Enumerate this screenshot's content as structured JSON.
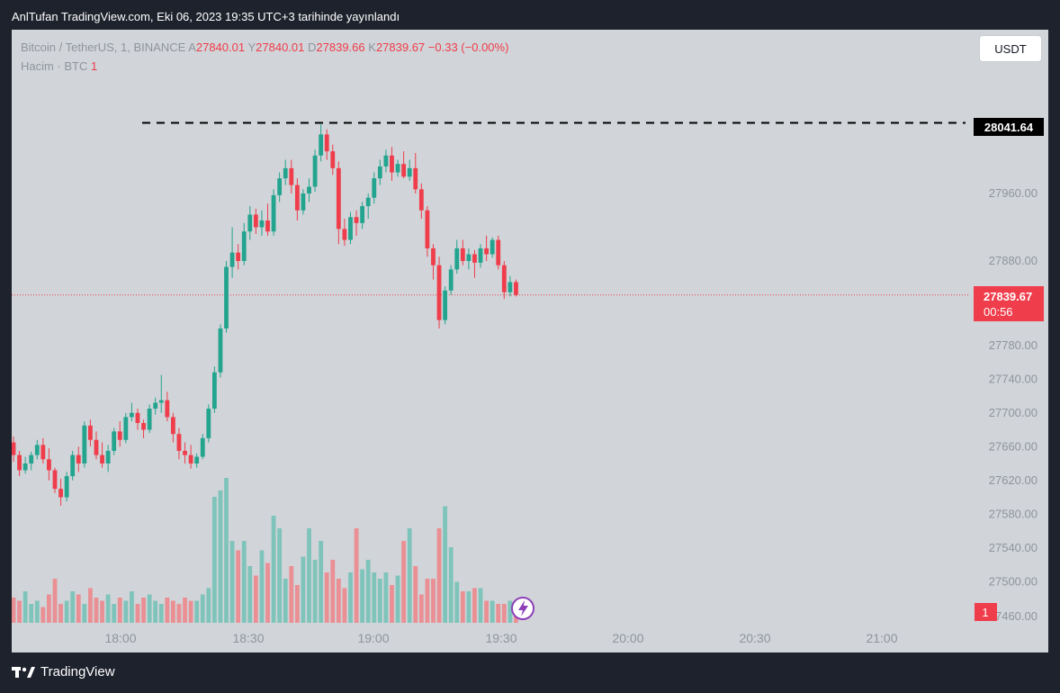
{
  "header": {
    "title": "AnlTufan TradingView.com, Eki 06, 2023 19:35 UTC+3 tarihinde yayınlandı"
  },
  "legend": {
    "symbol": "Bitcoin / TetherUS, 1, BINANCE",
    "o_label": "A",
    "o": "27840.01",
    "h_label": "Y",
    "h": "27840.01",
    "l_label": "D",
    "l": "27839.66",
    "c_label": "K",
    "c": "27839.67",
    "change": "−0.33 (−0.00%)",
    "volume_label": "Hacim · BTC",
    "volume_value": "1"
  },
  "currency_button": "USDT",
  "footer": {
    "brand": "TradingView"
  },
  "colors": {
    "up": "#22a48f",
    "down": "#ef3d4b",
    "up_vol": "#7fc4bb",
    "down_vol": "#ea8f94",
    "background": "#d1d4d8"
  },
  "chart_data": {
    "type": "candlestick",
    "symbol": "Bitcoin / TetherUS, 1, BINANCE",
    "y_ticks": [
      "27460.00",
      "27500.00",
      "27540.00",
      "27580.00",
      "27620.00",
      "27660.00",
      "27700.00",
      "27740.00",
      "27780.00",
      "27880.00",
      "27960.00"
    ],
    "x_ticks": [
      "18:00",
      "18:30",
      "19:00",
      "19:30",
      "20:00",
      "20:30",
      "21:00"
    ],
    "ylim": [
      27460,
      28040
    ],
    "price_labels": {
      "last": "27839.67",
      "countdown": "00:56",
      "high_line": "28041.64",
      "volume_last": "1"
    },
    "candles": [
      [
        27665,
        27672,
        27642,
        27650
      ],
      [
        27650,
        27655,
        27625,
        27632
      ],
      [
        27632,
        27648,
        27628,
        27640
      ],
      [
        27640,
        27654,
        27632,
        27650
      ],
      [
        27650,
        27668,
        27645,
        27662
      ],
      [
        27662,
        27670,
        27640,
        27645
      ],
      [
        27645,
        27658,
        27620,
        27632
      ],
      [
        27632,
        27635,
        27605,
        27610
      ],
      [
        27610,
        27622,
        27590,
        27600
      ],
      [
        27600,
        27630,
        27595,
        27625
      ],
      [
        27625,
        27655,
        27620,
        27650
      ],
      [
        27650,
        27660,
        27630,
        27640
      ],
      [
        27640,
        27690,
        27635,
        27685
      ],
      [
        27685,
        27692,
        27660,
        27668
      ],
      [
        27668,
        27678,
        27645,
        27650
      ],
      [
        27650,
        27665,
        27635,
        27640
      ],
      [
        27640,
        27662,
        27630,
        27655
      ],
      [
        27655,
        27682,
        27650,
        27678
      ],
      [
        27678,
        27690,
        27660,
        27668
      ],
      [
        27668,
        27700,
        27664,
        27695
      ],
      [
        27695,
        27712,
        27690,
        27700
      ],
      [
        27700,
        27705,
        27680,
        27688
      ],
      [
        27688,
        27692,
        27670,
        27680
      ],
      [
        27680,
        27710,
        27676,
        27705
      ],
      [
        27705,
        27718,
        27698,
        27712
      ],
      [
        27712,
        27745,
        27700,
        27715
      ],
      [
        27715,
        27725,
        27690,
        27695
      ],
      [
        27695,
        27700,
        27665,
        27675
      ],
      [
        27675,
        27682,
        27645,
        27655
      ],
      [
        27655,
        27665,
        27640,
        27650
      ],
      [
        27650,
        27662,
        27634,
        27640
      ],
      [
        27640,
        27652,
        27635,
        27648
      ],
      [
        27648,
        27675,
        27645,
        27670
      ],
      [
        27670,
        27710,
        27665,
        27705
      ],
      [
        27705,
        27755,
        27700,
        27748
      ],
      [
        27748,
        27805,
        27742,
        27800
      ],
      [
        27800,
        27880,
        27795,
        27873
      ],
      [
        27873,
        27920,
        27860,
        27890
      ],
      [
        27890,
        27900,
        27870,
        27880
      ],
      [
        27880,
        27925,
        27875,
        27915
      ],
      [
        27915,
        27945,
        27905,
        27935
      ],
      [
        27935,
        27942,
        27912,
        27920
      ],
      [
        27920,
        27940,
        27910,
        27928
      ],
      [
        27928,
        27948,
        27910,
        27915
      ],
      [
        27915,
        27965,
        27910,
        27958
      ],
      [
        27958,
        27985,
        27950,
        27978
      ],
      [
        27978,
        28000,
        27970,
        27990
      ],
      [
        27990,
        28000,
        27960,
        27970
      ],
      [
        27970,
        27978,
        27928,
        27940
      ],
      [
        27940,
        27965,
        27935,
        27960
      ],
      [
        27960,
        27978,
        27950,
        27968
      ],
      [
        27968,
        28012,
        27962,
        28005
      ],
      [
        28005,
        28042,
        27998,
        28030
      ],
      [
        28030,
        28036,
        28000,
        28010
      ],
      [
        28010,
        28018,
        27982,
        27990
      ],
      [
        27990,
        27998,
        27900,
        27918
      ],
      [
        27918,
        27930,
        27898,
        27905
      ],
      [
        27905,
        27938,
        27900,
        27932
      ],
      [
        27932,
        27940,
        27910,
        27925
      ],
      [
        27925,
        27950,
        27918,
        27945
      ],
      [
        27945,
        27960,
        27930,
        27955
      ],
      [
        27955,
        27985,
        27948,
        27978
      ],
      [
        27978,
        28000,
        27970,
        27992
      ],
      [
        27992,
        28012,
        27985,
        28005
      ],
      [
        28005,
        28015,
        27975,
        27985
      ],
      [
        27985,
        28000,
        27980,
        27995
      ],
      [
        27995,
        28010,
        27978,
        27980
      ],
      [
        27980,
        28000,
        27975,
        27990
      ],
      [
        27990,
        28008,
        27960,
        27965
      ],
      [
        27965,
        27972,
        27930,
        27940
      ],
      [
        27940,
        27945,
        27885,
        27895
      ],
      [
        27895,
        27900,
        27858,
        27875
      ],
      [
        27875,
        27885,
        27800,
        27810
      ],
      [
        27810,
        27850,
        27805,
        27845
      ],
      [
        27845,
        27875,
        27840,
        27870
      ],
      [
        27870,
        27905,
        27865,
        27895
      ],
      [
        27895,
        27905,
        27875,
        27880
      ],
      [
        27880,
        27895,
        27870,
        27888
      ],
      [
        27888,
        27893,
        27860,
        27878
      ],
      [
        27878,
        27900,
        27872,
        27895
      ],
      [
        27895,
        27910,
        27880,
        27888
      ],
      [
        27888,
        27908,
        27884,
        27905
      ],
      [
        27905,
        27910,
        27870,
        27875
      ],
      [
        27875,
        27880,
        27835,
        27843
      ],
      [
        27843,
        27862,
        27838,
        27855
      ],
      [
        27855,
        27858,
        27838,
        27840
      ]
    ],
    "volumes": [
      8,
      7,
      10,
      6,
      7,
      5,
      9,
      14,
      6,
      7,
      10,
      9,
      6,
      11,
      8,
      7,
      9,
      6,
      8,
      7,
      10,
      6,
      8,
      9,
      7,
      6,
      8,
      7,
      6,
      8,
      7,
      7,
      9,
      11,
      40,
      42,
      46,
      26,
      23,
      26,
      18,
      15,
      23,
      19,
      34,
      30,
      14,
      18,
      12,
      21,
      30,
      20,
      26,
      16,
      20,
      14,
      11,
      16,
      30,
      17,
      20,
      16,
      14,
      16,
      12,
      15,
      26,
      30,
      18,
      9,
      14,
      14,
      30,
      37,
      24,
      13,
      10,
      10,
      11,
      11,
      7,
      7,
      6,
      6,
      7,
      6
    ]
  }
}
